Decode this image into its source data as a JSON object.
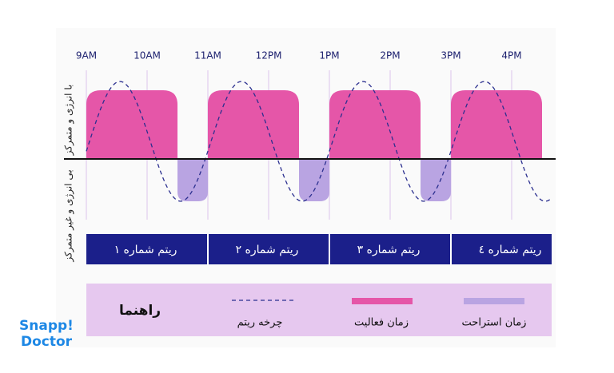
{
  "time_labels": [
    "9AM",
    "10AM",
    "11AM",
    "12PM",
    "1PM",
    "2PM",
    "3PM",
    "4PM"
  ],
  "y_labels": {
    "top": "با انرژی و متمرکز",
    "bottom": "بی انرژی و غیر متمرکز"
  },
  "rhythms": [
    "ریتم شماره ۱",
    "ریتم شماره ۲",
    "ریتم شماره ۳",
    "ریتم شماره ٤"
  ],
  "legend": {
    "title": "راهنما",
    "items": [
      "چرخه ریتم",
      "زمان فعالیت",
      "زمان استراحت"
    ]
  },
  "logo": {
    "line1": "Snapp!",
    "line2": "Doctor"
  }
}
